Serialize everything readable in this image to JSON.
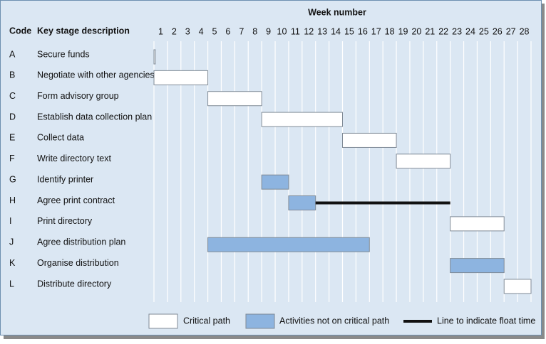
{
  "chart_data": {
    "type": "gantt",
    "title": "Week number",
    "code_heading": "Code",
    "description_heading": "Key stage description",
    "weeks": [
      1,
      2,
      3,
      4,
      5,
      6,
      7,
      8,
      9,
      10,
      11,
      12,
      13,
      14,
      15,
      16,
      17,
      18,
      19,
      20,
      21,
      22,
      23,
      24,
      25,
      26,
      27,
      28
    ],
    "xlim": [
      0,
      28
    ],
    "tasks": [
      {
        "code": "A",
        "description": "Secure funds",
        "start": 0,
        "end": 0.1,
        "critical": true
      },
      {
        "code": "B",
        "description": "Negotiate with other agencies",
        "start": 0,
        "end": 4,
        "critical": true
      },
      {
        "code": "C",
        "description": "Form advisory group",
        "start": 4,
        "end": 8,
        "critical": true
      },
      {
        "code": "D",
        "description": "Establish data collection plan",
        "start": 8,
        "end": 14,
        "critical": true
      },
      {
        "code": "E",
        "description": "Collect data",
        "start": 14,
        "end": 18,
        "critical": true
      },
      {
        "code": "F",
        "description": "Write directory text",
        "start": 18,
        "end": 22,
        "critical": true
      },
      {
        "code": "G",
        "description": "Identify printer",
        "start": 8,
        "end": 10,
        "critical": false
      },
      {
        "code": "H",
        "description": "Agree print contract",
        "start": 10,
        "end": 12,
        "critical": false,
        "float_end": 22
      },
      {
        "code": "I",
        "description": "Print directory",
        "start": 22,
        "end": 26,
        "critical": true
      },
      {
        "code": "J",
        "description": "Agree distribution plan",
        "start": 4,
        "end": 16,
        "critical": false
      },
      {
        "code": "K",
        "description": "Organise distribution",
        "start": 22,
        "end": 26,
        "critical": false
      },
      {
        "code": "L",
        "description": "Distribute directory",
        "start": 26,
        "end": 28,
        "critical": true
      }
    ],
    "colors": {
      "critical": "#ffffff",
      "non_critical": "#8db4e0",
      "float": "#111111"
    },
    "legend": {
      "critical": "Critical path",
      "non_critical": "Activities not on critical path",
      "float": "Line to indicate float time"
    }
  }
}
